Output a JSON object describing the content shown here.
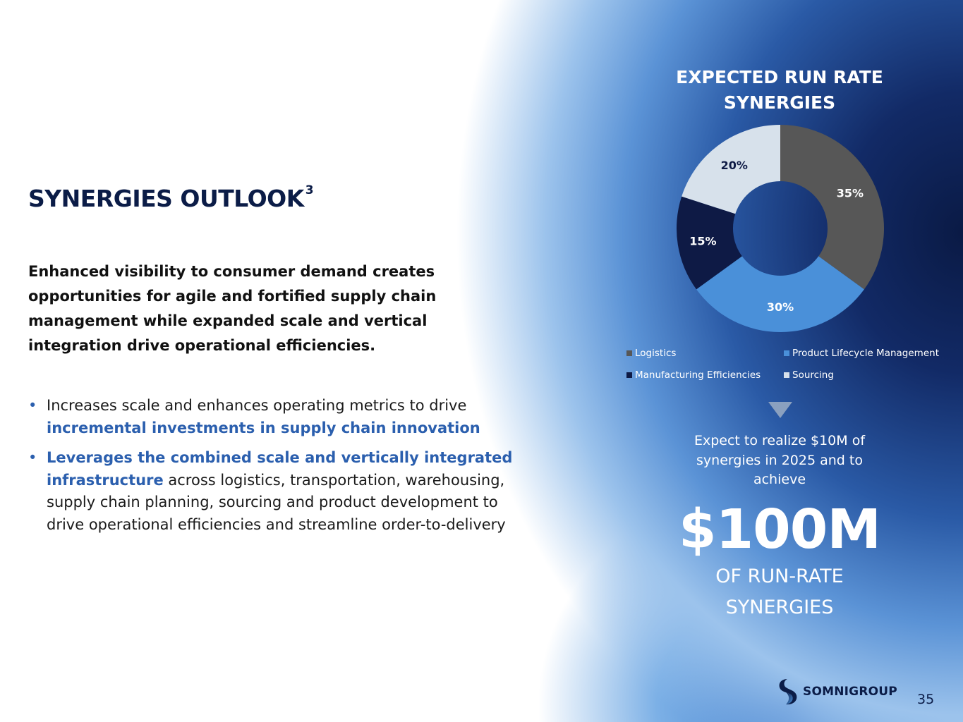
{
  "slide": {
    "title": "SYNERGIES OUTLOOK",
    "title_footnote": "3",
    "intro": "Enhanced visibility to consumer demand creates opportunities for agile and fortified supply chain management while expanded scale and vertical integration drive operational efficiencies.",
    "bullets": [
      {
        "text_before": "Increases scale and enhances operating metrics to drive ",
        "highlight": "incremental investments in supply chain innovation",
        "text_after": ""
      },
      {
        "text_before": "",
        "highlight": "Leverages the combined scale and vertically integrated infrastructure",
        "text_after": " across logistics, transportation, warehousing, supply chain planning, sourcing and product development to drive operational efficiencies and streamline order-to-delivery"
      }
    ],
    "bullet_glyph": "•",
    "callout": {
      "expect_text": "Expect to realize $10M of synergies in 2025 and to achieve",
      "big_value": "$100M",
      "sub_text": "OF RUN-RATE SYNERGIES"
    },
    "logo_text": "SOMNIGROUP",
    "page_number": "35",
    "colors": {
      "title": "#0b1c47",
      "highlight": "#2b5fae"
    }
  },
  "chart_data": {
    "type": "pie",
    "title": "EXPECTED RUN RATE SYNERGIES",
    "donut": true,
    "categories": [
      "Logistics",
      "Product Lifecycle Management",
      "Manufacturing Efficiencies",
      "Sourcing"
    ],
    "values": [
      35,
      30,
      15,
      20
    ],
    "labels": [
      "35%",
      "30%",
      "15%",
      "20%"
    ],
    "colors": [
      "#575757",
      "#4a90d9",
      "#0e1a45",
      "#d7e1eb"
    ],
    "label_colors": [
      "#ffffff",
      "#ffffff",
      "#ffffff",
      "#0e1a45"
    ],
    "legend_position": "bottom"
  }
}
